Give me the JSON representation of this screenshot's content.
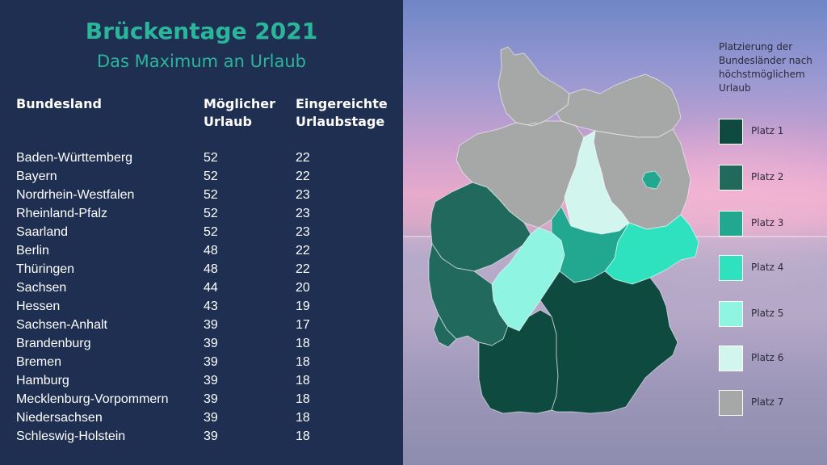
{
  "title": "Brückentage 2021",
  "subtitle": "Das Maximum an Urlaub",
  "table": {
    "headers": {
      "land": "Bundesland",
      "moeglich": [
        "Möglicher",
        "Urlaub"
      ],
      "eingereicht": [
        "Eingereichte",
        "Urlaubstage"
      ]
    },
    "rows": [
      {
        "land": "Baden-Württemberg",
        "moeglich": "52",
        "eingereicht": "22"
      },
      {
        "land": "Bayern",
        "moeglich": "52",
        "eingereicht": "22"
      },
      {
        "land": "Nordrhein-Westfalen",
        "moeglich": "52",
        "eingereicht": "23"
      },
      {
        "land": "Rheinland-Pfalz",
        "moeglich": "52",
        "eingereicht": "23"
      },
      {
        "land": "Saarland",
        "moeglich": "52",
        "eingereicht": "23"
      },
      {
        "land": "Berlin",
        "moeglich": "48",
        "eingereicht": "22"
      },
      {
        "land": "Thüringen",
        "moeglich": "48",
        "eingereicht": "22"
      },
      {
        "land": "Sachsen",
        "moeglich": "44",
        "eingereicht": "20"
      },
      {
        "land": "Hessen",
        "moeglich": "43",
        "eingereicht": "19"
      },
      {
        "land": "Sachsen-Anhalt",
        "moeglich": "39",
        "eingereicht": "17"
      },
      {
        "land": "Brandenburg",
        "moeglich": "39",
        "eingereicht": "18"
      },
      {
        "land": "Bremen",
        "moeglich": "39",
        "eingereicht": "18"
      },
      {
        "land": "Hamburg",
        "moeglich": "39",
        "eingereicht": "18"
      },
      {
        "land": "Mecklenburg-Vorpommern",
        "moeglich": "39",
        "eingereicht": "18"
      },
      {
        "land": "Niedersachsen",
        "moeglich": "39",
        "eingereicht": "18"
      },
      {
        "land": "Schleswig-Holstein",
        "moeglich": "39",
        "eingereicht": "18"
      }
    ]
  },
  "legend": {
    "title": "Platzierung der Bundesländer nach höchstmöglichem Urlaub",
    "items": [
      {
        "label": "Platz 1",
        "color": "#0e4a40"
      },
      {
        "label": "Platz 2",
        "color": "#22695d"
      },
      {
        "label": "Platz 3",
        "color": "#22a891"
      },
      {
        "label": "Platz 4",
        "color": "#2ee2c0"
      },
      {
        "label": "Platz 5",
        "color": "#8ff5e2"
      },
      {
        "label": "Platz 6",
        "color": "#d2f5ee"
      },
      {
        "label": "Platz 7",
        "color": "#a5a8a7"
      }
    ]
  },
  "map_rank": {
    "Schleswig-Holstein": 7,
    "Mecklenburg-Vorpommern": 7,
    "Niedersachsen": 7,
    "Brandenburg": 7,
    "Hamburg": 7,
    "Bremen": 7,
    "Berlin": 3,
    "Sachsen-Anhalt": 6,
    "Nordrhein-Westfalen": 2,
    "Hessen": 5,
    "Thüringen": 3,
    "Sachsen": 4,
    "Rheinland-Pfalz": 2,
    "Saarland": 2,
    "Baden-Württemberg": 1,
    "Bayern": 1
  }
}
